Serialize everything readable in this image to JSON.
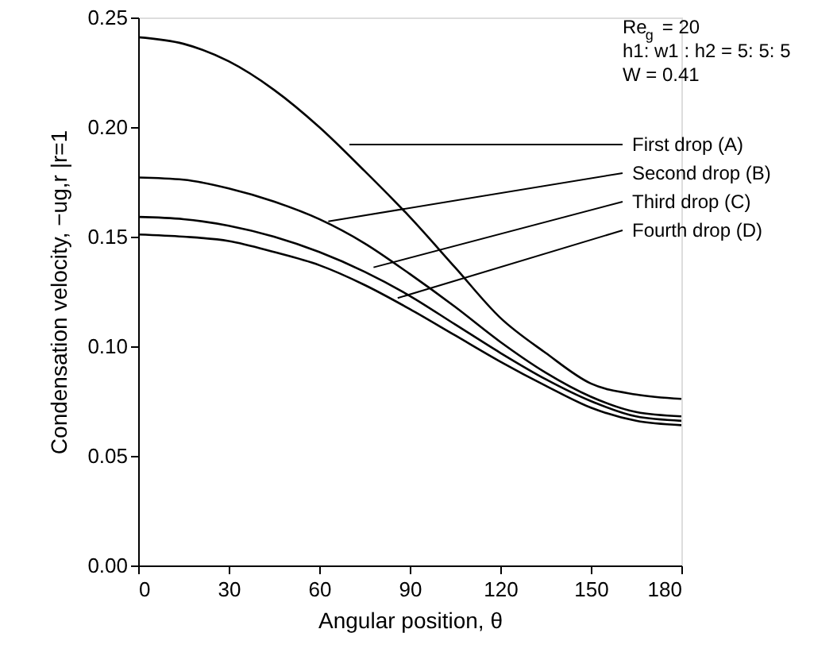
{
  "chart_data": {
    "type": "line",
    "xlabel": "Angular position, θ",
    "ylabel": "Condensation velocity, −ug,r |r=1",
    "x": [
      0,
      15,
      30,
      45,
      60,
      75,
      90,
      105,
      120,
      135,
      150,
      165,
      180
    ],
    "series": [
      {
        "color": "#000000",
        "values": [
          0.241,
          0.238,
          0.23,
          0.217,
          0.2,
          0.18,
          0.159,
          0.136,
          0.113,
          0.097,
          0.083,
          0.078,
          0.076
        ]
      },
      {
        "color": "#000000",
        "values": [
          0.177,
          0.176,
          0.172,
          0.166,
          0.158,
          0.147,
          0.133,
          0.118,
          0.102,
          0.088,
          0.077,
          0.07,
          0.068
        ]
      },
      {
        "color": "#000000",
        "values": [
          0.159,
          0.158,
          0.155,
          0.15,
          0.143,
          0.134,
          0.123,
          0.11,
          0.097,
          0.085,
          0.075,
          0.068,
          0.066
        ]
      },
      {
        "color": "#000000",
        "values": [
          0.151,
          0.15,
          0.148,
          0.143,
          0.137,
          0.128,
          0.117,
          0.105,
          0.093,
          0.082,
          0.072,
          0.066,
          0.064
        ]
      }
    ],
    "annotations": [
      "Re$_{g}$ = 20",
      "h1: w1 : h2 = 5: 5: 5",
      "W = 0.41",
      {
        "text": "First drop (A)",
        "x": 70,
        "y": 0.192
      },
      {
        "text": "Second drop (B)",
        "x": 63,
        "y": 0.157
      },
      {
        "text": "Third drop (C)",
        "x": 78,
        "y": 0.136
      },
      {
        "text": "Fourth drop (D)",
        "x": 86,
        "y": 0.122
      }
    ],
    "xlim": [
      0,
      180
    ],
    "xticks": [
      0,
      30,
      60,
      90,
      120,
      150,
      180
    ],
    "ylim": [
      0,
      0.25
    ],
    "yticks": [
      {
        "value": 0,
        "label": "0.00"
      },
      0.05,
      {
        "value": 0.1,
        "label": "0.10"
      },
      0.15,
      {
        "value": 0.2,
        "label": "0.20"
      },
      0.25
    ],
    "grid": false,
    "marker": "none",
    "line_style": "solid"
  }
}
